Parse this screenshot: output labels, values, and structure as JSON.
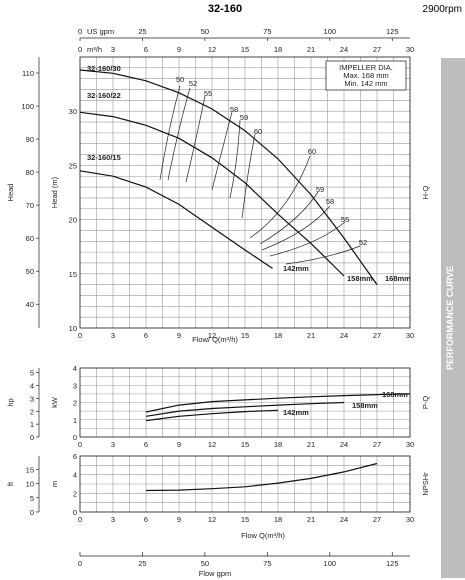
{
  "header": {
    "model": "32-160",
    "speed": "2900rpm"
  },
  "side_banner": "PERFORMANCE CURVE",
  "chart_data": [
    {
      "id": "hq",
      "type": "line",
      "section_label": "H-Q",
      "x_top_axes": [
        {
          "label": "US gpm",
          "ticks": [
            0,
            25,
            50,
            75,
            100,
            125
          ]
        },
        {
          "label": "m³/h",
          "ticks": [
            0,
            3,
            6,
            9,
            12,
            15,
            18,
            21,
            24,
            27,
            30
          ]
        }
      ],
      "xlabel": "Flow/ Q(m³/h)",
      "xlim": [
        0,
        30
      ],
      "x_ticks": [
        0,
        3,
        6,
        9,
        12,
        15,
        18,
        21,
        24,
        27,
        30
      ],
      "y_axes": [
        {
          "label": "Head",
          "ticks": [
            10,
            20,
            30,
            40,
            50,
            60,
            70,
            80,
            90,
            100,
            110
          ]
        },
        {
          "label": "Head (m)",
          "ylim": [
            10,
            35
          ],
          "ticks": [
            10,
            15,
            20,
            25,
            30
          ]
        }
      ],
      "legend_box": {
        "title": "IMPELLER DIA.",
        "max": "Max.  168 mm",
        "min": "Min.   142 mm"
      },
      "series": [
        {
          "name": "32-160/30",
          "end_label": "168mm",
          "x": [
            0,
            3,
            6,
            9,
            12,
            15,
            18,
            21,
            24,
            27
          ],
          "y": [
            33.8,
            33.5,
            32.8,
            31.7,
            30.2,
            28.2,
            25.6,
            22.3,
            18.3,
            14.0
          ]
        },
        {
          "name": "32-160/22",
          "end_label": "158mm",
          "x": [
            0,
            3,
            6,
            9,
            12,
            15,
            18,
            21,
            24
          ],
          "y": [
            29.9,
            29.5,
            28.7,
            27.5,
            25.7,
            23.4,
            20.5,
            17.8,
            14.8
          ]
        },
        {
          "name": "32-160/15",
          "end_label": "142mm",
          "x": [
            0,
            3,
            6,
            9,
            12,
            15,
            17.5
          ],
          "y": [
            24.5,
            24.0,
            23.0,
            21.4,
            19.3,
            17.2,
            15.5
          ]
        }
      ],
      "efficiency_labels": [
        "50",
        "52",
        "55",
        "58",
        "59",
        "60",
        "60",
        "59",
        "58",
        "55",
        "52"
      ]
    },
    {
      "id": "pq",
      "type": "line",
      "section_label": "P-Q",
      "xlim": [
        0,
        30
      ],
      "x_ticks": [
        0,
        3,
        6,
        9,
        12,
        15,
        18,
        21,
        24,
        27,
        30
      ],
      "y_axes": [
        {
          "label": "hp",
          "ticks": [
            0,
            1,
            2,
            3,
            4,
            5
          ]
        },
        {
          "label": "kW",
          "ylim": [
            0,
            4
          ],
          "ticks": [
            0,
            1,
            2,
            3,
            4
          ]
        }
      ],
      "series": [
        {
          "name": "168mm",
          "x": [
            6,
            9,
            12,
            15,
            18,
            21,
            24,
            27,
            30
          ],
          "y": [
            1.45,
            1.85,
            2.05,
            2.15,
            2.25,
            2.33,
            2.4,
            2.46,
            2.5
          ]
        },
        {
          "name": "158mm",
          "x": [
            6,
            9,
            12,
            15,
            18,
            21,
            24
          ],
          "y": [
            1.2,
            1.5,
            1.65,
            1.75,
            1.85,
            1.93,
            2.0
          ]
        },
        {
          "name": "142mm",
          "x": [
            6,
            9,
            12,
            15,
            18
          ],
          "y": [
            0.95,
            1.2,
            1.35,
            1.47,
            1.55
          ]
        }
      ]
    },
    {
      "id": "npsh",
      "type": "line",
      "section_label": "NPSHr",
      "xlabel": "Flow  Q(m³/h)",
      "xlim": [
        0,
        30
      ],
      "x_ticks": [
        0,
        3,
        6,
        9,
        12,
        15,
        18,
        21,
        24,
        27,
        30
      ],
      "y_axes": [
        {
          "label": "ft",
          "ticks": [
            0,
            5,
            10,
            15
          ]
        },
        {
          "label": "m",
          "ylim": [
            0,
            6
          ],
          "ticks": [
            0,
            2,
            4,
            6
          ]
        }
      ],
      "series": [
        {
          "name": "NPSHr",
          "x": [
            6,
            9,
            12,
            15,
            18,
            21,
            24,
            27
          ],
          "y": [
            2.3,
            2.35,
            2.5,
            2.7,
            3.1,
            3.6,
            4.3,
            5.2
          ]
        }
      ]
    },
    {
      "id": "gpm_axis",
      "type": "axis",
      "xlabel": "Flow gpm",
      "x_ticks": [
        0,
        25,
        50,
        75,
        100,
        125
      ]
    }
  ]
}
